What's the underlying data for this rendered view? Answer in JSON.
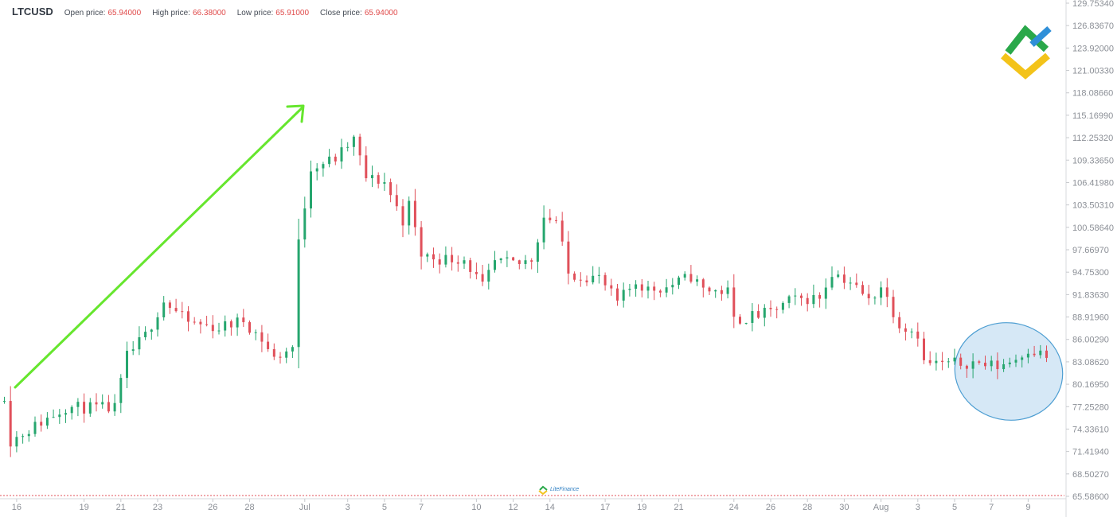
{
  "header": {
    "symbol": "LTCUSD",
    "open_label": "Open price:",
    "open_value": "65.94000",
    "high_label": "High price:",
    "high_value": "66.38000",
    "low_label": "Low price:",
    "low_value": "65.91000",
    "close_label": "Close price:",
    "close_value": "65.94000"
  },
  "watermark": {
    "text": "LiteFinance"
  },
  "colors": {
    "up": "#26a66e",
    "down": "#e0505a",
    "arrow": "#66e62e",
    "ellipse_fill": "#cfe4f5",
    "ellipse_stroke": "#4d9ed2",
    "axis_text": "#8b8f96",
    "logo_green": "#2aa84a",
    "logo_yellow": "#f3c31a",
    "logo_blue": "#2f8fd8"
  },
  "chart_data": {
    "type": "candlestick",
    "y_axis": {
      "position": "right",
      "ticks": [
        "129.75340",
        "126.83670",
        "123.92000",
        "121.00330",
        "118.08660",
        "115.16990",
        "112.25320",
        "109.33650",
        "106.41980",
        "103.50310",
        "100.58640",
        "97.66970",
        "94.75300",
        "91.83630",
        "88.91960",
        "86.00290",
        "83.08620",
        "80.16950",
        "77.25280",
        "74.33610",
        "71.41940",
        "68.50270",
        "65.58600"
      ],
      "min": 65.586,
      "max": 129.7534
    },
    "x_axis": {
      "ticks": [
        {
          "label": "16",
          "i": 2
        },
        {
          "label": "19",
          "i": 13
        },
        {
          "label": "21",
          "i": 19
        },
        {
          "label": "23",
          "i": 25
        },
        {
          "label": "26",
          "i": 34
        },
        {
          "label": "28",
          "i": 40
        },
        {
          "label": "Jul",
          "i": 49
        },
        {
          "label": "3",
          "i": 56
        },
        {
          "label": "5",
          "i": 62
        },
        {
          "label": "7",
          "i": 68
        },
        {
          "label": "10",
          "i": 77
        },
        {
          "label": "12",
          "i": 83
        },
        {
          "label": "14",
          "i": 89
        },
        {
          "label": "17",
          "i": 98
        },
        {
          "label": "19",
          "i": 104
        },
        {
          "label": "21",
          "i": 110
        },
        {
          "label": "24",
          "i": 119
        },
        {
          "label": "26",
          "i": 125
        },
        {
          "label": "28",
          "i": 131
        },
        {
          "label": "30",
          "i": 137
        },
        {
          "label": "Aug",
          "i": 143
        },
        {
          "label": "3",
          "i": 149
        },
        {
          "label": "5",
          "i": 155
        },
        {
          "label": "7",
          "i": 161
        },
        {
          "label": "9",
          "i": 167
        }
      ]
    },
    "candle_count": 171,
    "series": [
      {
        "i": 0,
        "p": 78.0
      },
      {
        "i": 1,
        "p": 72.8
      },
      {
        "i": 10,
        "p": 77.2
      },
      {
        "i": 18,
        "p": 77.0
      },
      {
        "i": 20,
        "p": 83.8
      },
      {
        "i": 23,
        "p": 86.5
      },
      {
        "i": 26,
        "p": 91.0
      },
      {
        "i": 30,
        "p": 88.2
      },
      {
        "i": 35,
        "p": 87.5
      },
      {
        "i": 39,
        "p": 88.5
      },
      {
        "i": 42,
        "p": 86.0
      },
      {
        "i": 44,
        "p": 83.5
      },
      {
        "i": 47,
        "p": 85.0
      },
      {
        "i": 48,
        "p": 98.5
      },
      {
        "i": 50,
        "p": 108.5
      },
      {
        "i": 54,
        "p": 109.5
      },
      {
        "i": 57,
        "p": 112.0
      },
      {
        "i": 59,
        "p": 107.0
      },
      {
        "i": 62,
        "p": 106.5
      },
      {
        "i": 65,
        "p": 101.5
      },
      {
        "i": 66,
        "p": 103.5
      },
      {
        "i": 68,
        "p": 97.0
      },
      {
        "i": 71,
        "p": 96.5
      },
      {
        "i": 75,
        "p": 96.5
      },
      {
        "i": 78,
        "p": 92.8
      },
      {
        "i": 80,
        "p": 96.0
      },
      {
        "i": 84,
        "p": 95.8
      },
      {
        "i": 86,
        "p": 96.5
      },
      {
        "i": 88,
        "p": 102.0
      },
      {
        "i": 90,
        "p": 101.5
      },
      {
        "i": 92,
        "p": 94.5
      },
      {
        "i": 97,
        "p": 94.0
      },
      {
        "i": 100,
        "p": 90.8
      },
      {
        "i": 103,
        "p": 93.5
      },
      {
        "i": 105,
        "p": 92.5
      },
      {
        "i": 108,
        "p": 92.8
      },
      {
        "i": 112,
        "p": 94.2
      },
      {
        "i": 114,
        "p": 92.5
      },
      {
        "i": 118,
        "p": 92.2
      },
      {
        "i": 119,
        "p": 88.5
      },
      {
        "i": 125,
        "p": 89.5
      },
      {
        "i": 128,
        "p": 91.0
      },
      {
        "i": 133,
        "p": 91.5
      },
      {
        "i": 135,
        "p": 94.8
      },
      {
        "i": 138,
        "p": 93.5
      },
      {
        "i": 141,
        "p": 91.0
      },
      {
        "i": 143,
        "p": 93.0
      },
      {
        "i": 146,
        "p": 88.0
      },
      {
        "i": 149,
        "p": 86.8
      },
      {
        "i": 150,
        "p": 83.0
      },
      {
        "i": 153,
        "p": 82.8
      },
      {
        "i": 158,
        "p": 83.0
      },
      {
        "i": 162,
        "p": 82.5
      },
      {
        "i": 165,
        "p": 83.5
      },
      {
        "i": 167,
        "p": 84.8
      },
      {
        "i": 170,
        "p": 83.8
      }
    ]
  }
}
